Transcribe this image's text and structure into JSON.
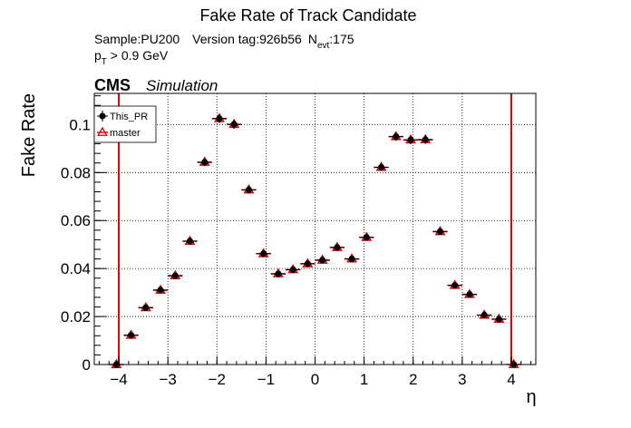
{
  "chart_data": {
    "type": "scatter",
    "title": "Fake Rate of Track Candidate",
    "info": {
      "sample": "Sample:PU200",
      "version": "Version tag:926b56",
      "nevt_prefix": "N",
      "nevt_sub": "evt",
      "nevt_value": ":175",
      "pt_prefix": "p",
      "pt_sub": "T",
      "pt_cut": " > 0.9 GeV"
    },
    "cms_label": "CMS",
    "simulation_label": "Simulation",
    "xlabel": "η",
    "ylabel": "Fake Rate",
    "xlim": [
      -4.5,
      4.5
    ],
    "ylim": [
      0,
      0.113
    ],
    "xticks": [
      -4,
      -3,
      -2,
      -1,
      0,
      1,
      2,
      3,
      4
    ],
    "xtick_labels": [
      "−4",
      "−3",
      "−2",
      "−1",
      "0",
      "1",
      "2",
      "3",
      "4"
    ],
    "yticks": [
      0,
      0.02,
      0.04,
      0.06,
      0.08,
      0.1
    ],
    "ytick_labels": [
      "0",
      "0.02",
      "0.04",
      "0.06",
      "0.08",
      "0.1"
    ],
    "grid": true,
    "legend_position": "top-left",
    "bin_half_width": 0.15,
    "x": [
      -4.05,
      -3.75,
      -3.45,
      -3.15,
      -2.85,
      -2.55,
      -2.25,
      -1.95,
      -1.65,
      -1.35,
      -1.05,
      -0.75,
      -0.45,
      -0.15,
      0.15,
      0.45,
      0.75,
      1.05,
      1.35,
      1.65,
      1.95,
      2.25,
      2.55,
      2.85,
      3.15,
      3.45,
      3.75,
      4.05
    ],
    "series": [
      {
        "name": "This_PR",
        "color": "#000000",
        "marker": "filled-circle",
        "values": [
          0.0,
          0.0122,
          0.0237,
          0.031,
          0.037,
          0.0514,
          0.0843,
          0.1025,
          0.1001,
          0.0728,
          0.0462,
          0.0378,
          0.0395,
          0.042,
          0.0435,
          0.0488,
          0.044,
          0.053,
          0.0822,
          0.095,
          0.0936,
          0.0937,
          0.0554,
          0.033,
          0.0292,
          0.0206,
          0.0189,
          0.0
        ],
        "errors": [
          0.0009,
          0.0011,
          0.0011,
          0.0011,
          0.0012,
          0.0013,
          0.0016,
          0.0018,
          0.0018,
          0.0015,
          0.0012,
          0.0011,
          0.0011,
          0.0011,
          0.0011,
          0.0012,
          0.0011,
          0.0012,
          0.0015,
          0.0017,
          0.0017,
          0.0017,
          0.0013,
          0.0011,
          0.0011,
          0.001,
          0.001,
          0.0009
        ]
      },
      {
        "name": "master",
        "color": "#dd0000",
        "marker": "open-triangle",
        "values": [
          0.0,
          0.0122,
          0.0237,
          0.031,
          0.037,
          0.0514,
          0.0843,
          0.1025,
          0.1001,
          0.0728,
          0.0462,
          0.0378,
          0.0395,
          0.042,
          0.0435,
          0.0488,
          0.044,
          0.053,
          0.0822,
          0.095,
          0.0936,
          0.0937,
          0.0554,
          0.033,
          0.0292,
          0.0206,
          0.0189,
          0.0
        ],
        "errors": [
          0.0009,
          0.0011,
          0.0011,
          0.0011,
          0.0012,
          0.0013,
          0.0016,
          0.0018,
          0.0018,
          0.0015,
          0.0012,
          0.0011,
          0.0011,
          0.0011,
          0.0011,
          0.0012,
          0.0011,
          0.0012,
          0.0015,
          0.0017,
          0.0017,
          0.0017,
          0.0013,
          0.0011,
          0.0011,
          0.001,
          0.001,
          0.0009
        ]
      }
    ],
    "vertical_lines": [
      -4.0,
      4.0
    ],
    "vertical_line_color": "#dd0000"
  }
}
